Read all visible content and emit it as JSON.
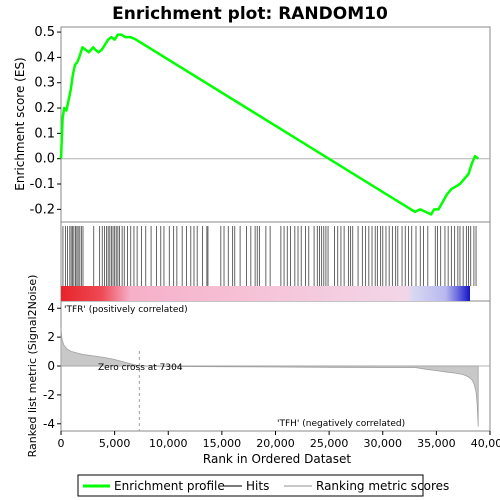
{
  "chart_data": {
    "type": "line",
    "title": "Enrichment plot: RANDOM10",
    "xlabel": "Rank in Ordered Dataset",
    "xlim": [
      0,
      40000
    ],
    "x_ticks": [
      0,
      5000,
      10000,
      15000,
      20000,
      25000,
      30000,
      35000,
      40000
    ],
    "x_tick_labels": [
      "0",
      "5,000",
      "10,000",
      "15,000",
      "20,000",
      "25,000",
      "30,000",
      "35,000",
      "40,000"
    ],
    "es_panel": {
      "ylabel": "Enrichment score (ES)",
      "ylim": [
        -0.25,
        0.52
      ],
      "y_ticks": [
        -0.2,
        -0.1,
        0.0,
        0.1,
        0.2,
        0.3,
        0.4,
        0.5
      ],
      "y_tick_labels": [
        "-0.2",
        "-0.1",
        "0.0",
        "0.1",
        "0.2",
        "0.3",
        "0.4",
        "0.5"
      ],
      "series": [
        {
          "name": "Enrichment profile",
          "color": "#00ff00",
          "x": [
            0,
            150,
            300,
            500,
            700,
            900,
            1100,
            1300,
            1500,
            1700,
            2000,
            2300,
            2600,
            3000,
            3200,
            3500,
            3800,
            4100,
            4400,
            4700,
            5000,
            5300,
            5600,
            6000,
            6500,
            7000,
            33000,
            33500,
            34000,
            34500,
            34800,
            35200,
            35600,
            36000,
            36400,
            36800,
            37200,
            37600,
            38000,
            38300,
            38600,
            38900
          ],
          "y": [
            0.0,
            0.16,
            0.2,
            0.19,
            0.23,
            0.27,
            0.33,
            0.37,
            0.38,
            0.4,
            0.44,
            0.43,
            0.42,
            0.44,
            0.43,
            0.42,
            0.43,
            0.45,
            0.47,
            0.48,
            0.47,
            0.49,
            0.49,
            0.48,
            0.48,
            0.47,
            -0.21,
            -0.2,
            -0.21,
            -0.22,
            -0.2,
            -0.2,
            -0.17,
            -0.14,
            -0.12,
            -0.11,
            -0.1,
            -0.08,
            -0.06,
            -0.02,
            0.01,
            0.0
          ]
        }
      ]
    },
    "hits_panel": {
      "legend_name": "Hits",
      "hit_ranks": [
        180,
        420,
        600,
        820,
        950,
        1080,
        1200,
        1350,
        1480,
        1600,
        1750,
        1900,
        2050,
        3050,
        3600,
        3850,
        4050,
        4250,
        4400,
        4550,
        4700,
        4850,
        5000,
        5150,
        5300,
        5450,
        5700,
        5900,
        6200,
        6500,
        6800,
        7100,
        7500,
        7900,
        8400,
        8900,
        9300,
        9600,
        10100,
        10500,
        10800,
        11300,
        11700,
        12100,
        12400,
        12700,
        13200,
        13600,
        13700,
        14900,
        15200,
        15600,
        16000,
        16200,
        16700,
        17300,
        17700,
        18100,
        18300,
        18500,
        19100,
        19500,
        20500,
        20800,
        21100,
        21400,
        21800,
        22100,
        22400,
        22800,
        23100,
        23600,
        23900,
        24100,
        24300,
        24500,
        24700,
        24900,
        25500,
        25800,
        26100,
        26400,
        26800,
        27000,
        27200,
        27700,
        28100,
        28400,
        28700,
        29000,
        29300,
        29500,
        29800,
        30000,
        30300,
        30600,
        30900,
        31200,
        31400,
        31800,
        32100,
        32400,
        32700,
        33100,
        33500,
        33800,
        34200,
        34900,
        35100,
        35400,
        35800,
        36100,
        36400,
        36700,
        37000,
        37200,
        37500,
        37800,
        38000,
        38200,
        38500,
        38700
      ]
    },
    "metric_panel": {
      "ylabel": "Ranked list metric (Signal2Noise)",
      "legend_name": "Ranking metric scores",
      "ylim": [
        -4.5,
        4.5
      ],
      "y_ticks": [
        -4,
        -2,
        0,
        2,
        4
      ],
      "y_tick_labels": [
        "-4",
        "-2",
        "0",
        "2",
        "4"
      ],
      "positive_label": "'TFR' (positively correlated)",
      "negative_label": "'TFH' (negatively correlated)",
      "zero_cross_label": "Zero cross at 7304",
      "zero_cross": 7304,
      "x": [
        0,
        100,
        300,
        600,
        1000,
        1500,
        2000,
        3000,
        4000,
        5000,
        6000,
        7304,
        10000,
        15000,
        20000,
        25000,
        30000,
        33000,
        34000,
        35000,
        36000,
        37000,
        37500,
        38000,
        38300,
        38500,
        38700,
        38800,
        38900
      ],
      "y": [
        2.6,
        1.8,
        1.4,
        1.15,
        1.0,
        0.9,
        0.8,
        0.7,
        0.6,
        0.45,
        0.25,
        0.0,
        -0.03,
        -0.05,
        -0.07,
        -0.09,
        -0.1,
        -0.1,
        -0.22,
        -0.32,
        -0.42,
        -0.52,
        -0.6,
        -0.75,
        -0.95,
        -1.2,
        -1.8,
        -2.6,
        -4.2
      ]
    }
  }
}
